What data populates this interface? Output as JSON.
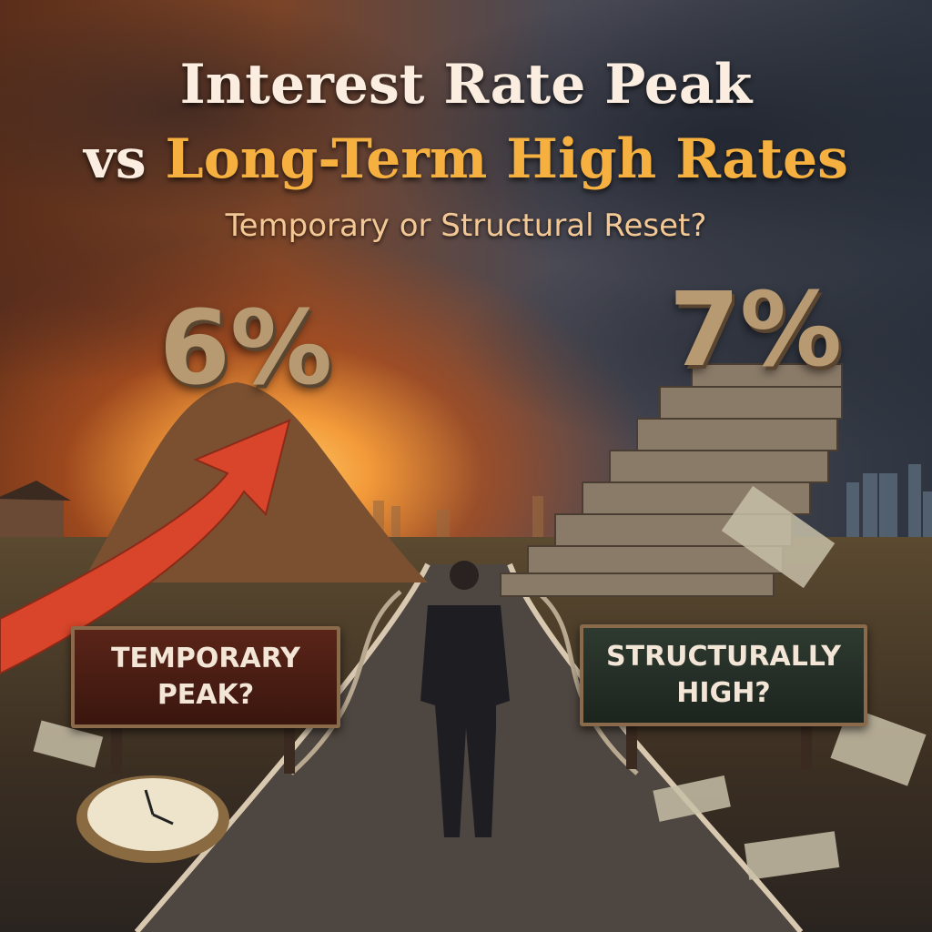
{
  "title": {
    "line1": "Interest Rate Peak",
    "line2_prefix": "vs ",
    "line2_highlight": "Long-Term High Rates",
    "subtitle": "Temporary or Structural Reset?"
  },
  "left_path": {
    "rate_label": "6%",
    "sign_line1": "TEMPORARY",
    "sign_line2": "PEAK?"
  },
  "right_path": {
    "rate_label": "7%",
    "sign_line1": "STRUCTURALLY",
    "sign_line2": "HIGH?"
  },
  "colors": {
    "title": "#fbeee0",
    "highlight": "#f5b040",
    "subtitle": "#f3c895",
    "arrow": "#d8452a"
  },
  "icons": [
    "rising-arrow-icon",
    "clock-icon",
    "man-figure",
    "brick-staircase",
    "sand-mound"
  ]
}
